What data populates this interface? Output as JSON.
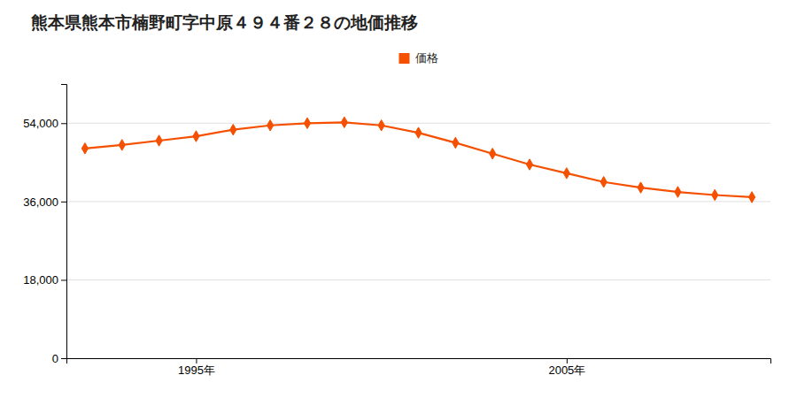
{
  "chart_data": {
    "type": "line",
    "title": "熊本県熊本市楠野町字中原４９４番２８の地価推移",
    "x": [
      1992,
      1993,
      1994,
      1995,
      1996,
      1997,
      1998,
      1999,
      2000,
      2001,
      2002,
      2003,
      2004,
      2005,
      2006,
      2007,
      2008,
      2009,
      2010
    ],
    "series": [
      {
        "name": "価格",
        "color": "#f55000",
        "marker": "diamond",
        "values": [
          48200,
          49000,
          50000,
          51000,
          52500,
          53500,
          54000,
          54200,
          53500,
          51800,
          49500,
          47000,
          44500,
          42500,
          40500,
          39200,
          38200,
          37500,
          37000
        ]
      }
    ],
    "xlim": [
      1991.5,
      2010.5
    ],
    "xticks": [
      {
        "value": 1995,
        "label": "1995年"
      },
      {
        "value": 2005,
        "label": "2005年"
      }
    ],
    "ylim": [
      0,
      63000
    ],
    "yticks": [
      0,
      {
        "value": 18000,
        "label": "18,000"
      },
      {
        "value": 36000,
        "label": "36,000"
      },
      {
        "value": 54000,
        "label": "54,000"
      }
    ],
    "grid": true,
    "legend": "top"
  }
}
